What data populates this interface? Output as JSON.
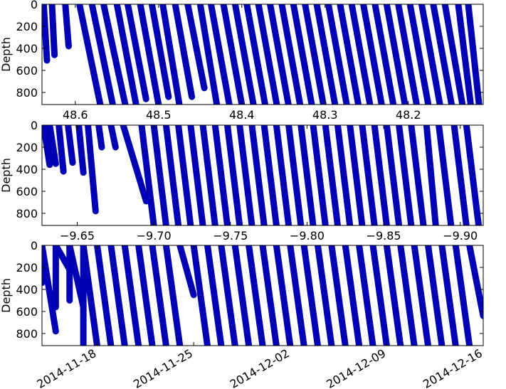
{
  "chart_data": [
    {
      "type": "scatter",
      "ylabel": "Depth",
      "xlabel": "",
      "x_reversed": true,
      "xlim": [
        48.64,
        48.11
      ],
      "ylim": [
        910,
        0
      ],
      "xticks": [
        48.6,
        48.5,
        48.4,
        48.3,
        48.2
      ],
      "xtick_labels": [
        "48.6",
        "48.5",
        "48.4",
        "48.3",
        "48.2"
      ],
      "yticks": [
        0,
        200,
        400,
        600,
        800
      ],
      "ytick_labels": [
        "0",
        "200",
        "400",
        "600",
        "800"
      ],
      "grid": false,
      "marker_color": "#0000b4",
      "series": [
        {
          "profiles": [
            {
              "x0": 48.638,
              "x1": 48.634,
              "max_depth": 510
            },
            {
              "x0": 48.628,
              "x1": 48.625,
              "max_depth": 460
            },
            {
              "x0": 48.612,
              "x1": 48.608,
              "max_depth": 380
            },
            {
              "x0": 48.595,
              "x1": 48.57,
              "max_depth": 910
            },
            {
              "x0": 48.58,
              "x1": 48.555,
              "max_depth": 910
            },
            {
              "x0": 48.566,
              "x1": 48.54,
              "max_depth": 910
            },
            {
              "x0": 48.55,
              "x1": 48.527,
              "max_depth": 910
            },
            {
              "x0": 48.537,
              "x1": 48.515,
              "max_depth": 860
            },
            {
              "x0": 48.522,
              "x1": 48.5,
              "max_depth": 910
            },
            {
              "x0": 48.508,
              "x1": 48.488,
              "max_depth": 840
            },
            {
              "x0": 48.495,
              "x1": 48.475,
              "max_depth": 910
            },
            {
              "x0": 48.48,
              "x1": 48.46,
              "max_depth": 840
            },
            {
              "x0": 48.465,
              "x1": 48.445,
              "max_depth": 760
            },
            {
              "x0": 48.45,
              "x1": 48.43,
              "max_depth": 910
            },
            {
              "x0": 48.437,
              "x1": 48.415,
              "max_depth": 910
            },
            {
              "x0": 48.422,
              "x1": 48.4,
              "max_depth": 910
            },
            {
              "x0": 48.408,
              "x1": 48.386,
              "max_depth": 910
            },
            {
              "x0": 48.394,
              "x1": 48.372,
              "max_depth": 910
            },
            {
              "x0": 48.38,
              "x1": 48.358,
              "max_depth": 910
            },
            {
              "x0": 48.366,
              "x1": 48.344,
              "max_depth": 910
            },
            {
              "x0": 48.352,
              "x1": 48.33,
              "max_depth": 910
            },
            {
              "x0": 48.338,
              "x1": 48.316,
              "max_depth": 910
            },
            {
              "x0": 48.324,
              "x1": 48.302,
              "max_depth": 910
            },
            {
              "x0": 48.31,
              "x1": 48.288,
              "max_depth": 910
            },
            {
              "x0": 48.296,
              "x1": 48.274,
              "max_depth": 910
            },
            {
              "x0": 48.282,
              "x1": 48.26,
              "max_depth": 910
            },
            {
              "x0": 48.268,
              "x1": 48.246,
              "max_depth": 910
            },
            {
              "x0": 48.254,
              "x1": 48.232,
              "max_depth": 910
            },
            {
              "x0": 48.24,
              "x1": 48.218,
              "max_depth": 910
            },
            {
              "x0": 48.226,
              "x1": 48.204,
              "max_depth": 910
            },
            {
              "x0": 48.212,
              "x1": 48.19,
              "max_depth": 910
            },
            {
              "x0": 48.198,
              "x1": 48.176,
              "max_depth": 910
            },
            {
              "x0": 48.184,
              "x1": 48.162,
              "max_depth": 910
            },
            {
              "x0": 48.17,
              "x1": 48.148,
              "max_depth": 910
            },
            {
              "x0": 48.156,
              "x1": 48.135,
              "max_depth": 910
            },
            {
              "x0": 48.14,
              "x1": 48.125,
              "max_depth": 910
            },
            {
              "x0": 48.128,
              "x1": 48.115,
              "max_depth": 910
            }
          ]
        }
      ]
    },
    {
      "type": "scatter",
      "ylabel": "Depth",
      "xlabel": "",
      "x_reversed": true,
      "xlim": [
        -9.627,
        -9.915
      ],
      "ylim": [
        910,
        0
      ],
      "xticks": [
        -9.65,
        -9.7,
        -9.75,
        -9.8,
        -9.85,
        -9.9
      ],
      "xtick_labels": [
        "−9.65",
        "−9.70",
        "−9.75",
        "−9.80",
        "−9.85",
        "−9.90"
      ],
      "yticks": [
        0,
        200,
        400,
        600,
        800
      ],
      "ytick_labels": [
        "0",
        "200",
        "400",
        "600",
        "800"
      ],
      "grid": false,
      "marker_color": "#0000b4",
      "series": [
        {
          "profiles": [
            {
              "x0": -9.628,
              "x1": -9.632,
              "max_depth": 360
            },
            {
              "x0": -9.632,
              "x1": -9.636,
              "max_depth": 350
            },
            {
              "x0": -9.638,
              "x1": -9.641,
              "max_depth": 420
            },
            {
              "x0": -9.644,
              "x1": -9.647,
              "max_depth": 340
            },
            {
              "x0": -9.651,
              "x1": -9.654,
              "max_depth": 430
            },
            {
              "x0": -9.657,
              "x1": -9.662,
              "max_depth": 780
            },
            {
              "x0": -9.664,
              "x1": -9.666,
              "max_depth": 200
            },
            {
              "x0": -9.672,
              "x1": -9.675,
              "max_depth": 200
            },
            {
              "x0": -9.68,
              "x1": -9.695,
              "max_depth": 690
            },
            {
              "x0": -9.692,
              "x1": -9.7,
              "max_depth": 910
            },
            {
              "x0": -9.7,
              "x1": -9.708,
              "max_depth": 910
            },
            {
              "x0": -9.708,
              "x1": -9.716,
              "max_depth": 910
            },
            {
              "x0": -9.716,
              "x1": -9.724,
              "max_depth": 910
            },
            {
              "x0": -9.724,
              "x1": -9.732,
              "max_depth": 910
            },
            {
              "x0": -9.732,
              "x1": -9.74,
              "max_depth": 910
            },
            {
              "x0": -9.74,
              "x1": -9.748,
              "max_depth": 910
            },
            {
              "x0": -9.748,
              "x1": -9.756,
              "max_depth": 910
            },
            {
              "x0": -9.756,
              "x1": -9.764,
              "max_depth": 910
            },
            {
              "x0": -9.764,
              "x1": -9.772,
              "max_depth": 910
            },
            {
              "x0": -9.772,
              "x1": -9.78,
              "max_depth": 910
            },
            {
              "x0": -9.78,
              "x1": -9.788,
              "max_depth": 910
            },
            {
              "x0": -9.788,
              "x1": -9.796,
              "max_depth": 910
            },
            {
              "x0": -9.796,
              "x1": -9.804,
              "max_depth": 910
            },
            {
              "x0": -9.804,
              "x1": -9.812,
              "max_depth": 910
            },
            {
              "x0": -9.812,
              "x1": -9.82,
              "max_depth": 910
            },
            {
              "x0": -9.82,
              "x1": -9.828,
              "max_depth": 910
            },
            {
              "x0": -9.828,
              "x1": -9.836,
              "max_depth": 910
            },
            {
              "x0": -9.836,
              "x1": -9.844,
              "max_depth": 910
            },
            {
              "x0": -9.844,
              "x1": -9.852,
              "max_depth": 910
            },
            {
              "x0": -9.852,
              "x1": -9.86,
              "max_depth": 910
            },
            {
              "x0": -9.86,
              "x1": -9.868,
              "max_depth": 910
            },
            {
              "x0": -9.868,
              "x1": -9.876,
              "max_depth": 910
            },
            {
              "x0": -9.878,
              "x1": -9.884,
              "max_depth": 910
            },
            {
              "x0": -9.886,
              "x1": -9.894,
              "max_depth": 910
            },
            {
              "x0": -9.896,
              "x1": -9.904,
              "max_depth": 910
            },
            {
              "x0": -9.904,
              "x1": -9.912,
              "max_depth": 910
            }
          ]
        }
      ]
    },
    {
      "type": "scatter",
      "ylabel": "Depth",
      "xlabel": "",
      "x_is_date": true,
      "xlim": [
        "2014-11-14",
        "2014-12-16"
      ],
      "ylim": [
        910,
        0
      ],
      "xticks": [
        "2014-11-18",
        "2014-11-25",
        "2014-12-02",
        "2014-12-09",
        "2014-12-16"
      ],
      "xtick_labels": [
        "2014-11-18",
        "2014-11-25",
        "2014-12-02",
        "2014-12-09",
        "2014-12-16"
      ],
      "yticks": [
        0,
        200,
        400,
        600,
        800
      ],
      "ytick_labels": [
        "0",
        "200",
        "400",
        "600",
        "800"
      ],
      "grid": false,
      "marker_color": "#0000b4",
      "series": [
        {
          "profiles": [
            {
              "x0": "2014-11-14",
              "x1": "2014-11-14",
              "max_depth": 340
            },
            {
              "x0": "2014-11-14",
              "x1": "2014-11-15",
              "max_depth": 780
            },
            {
              "x0": "2014-11-15",
              "x1": "2014-11-15",
              "max_depth": 560
            },
            {
              "x0": "2014-11-15",
              "x1": "2014-11-16",
              "max_depth": 220
            },
            {
              "x0": "2014-11-16",
              "x1": "2014-11-16",
              "max_depth": 500
            },
            {
              "x0": "2014-11-16",
              "x1": "2014-11-17",
              "max_depth": 560
            },
            {
              "x0": "2014-11-17",
              "x1": "2014-11-17",
              "max_depth": 910
            },
            {
              "x0": "2014-11-17",
              "x1": "2014-11-18",
              "max_depth": 910
            },
            {
              "x0": "2014-11-18",
              "x1": "2014-11-19",
              "max_depth": 910
            },
            {
              "x0": "2014-11-19",
              "x1": "2014-11-20",
              "max_depth": 910
            },
            {
              "x0": "2014-11-20",
              "x1": "2014-11-21",
              "max_depth": 910
            },
            {
              "x0": "2014-11-21",
              "x1": "2014-11-22",
              "max_depth": 910
            },
            {
              "x0": "2014-11-22",
              "x1": "2014-11-23",
              "max_depth": 910
            },
            {
              "x0": "2014-11-23",
              "x1": "2014-11-24",
              "max_depth": 910
            },
            {
              "x0": "2014-11-24",
              "x1": "2014-11-25",
              "max_depth": 450
            },
            {
              "x0": "2014-11-25",
              "x1": "2014-11-26",
              "max_depth": 910
            },
            {
              "x0": "2014-11-26",
              "x1": "2014-11-27",
              "max_depth": 910
            },
            {
              "x0": "2014-11-27",
              "x1": "2014-11-28",
              "max_depth": 910
            },
            {
              "x0": "2014-11-28",
              "x1": "2014-11-29",
              "max_depth": 910
            },
            {
              "x0": "2014-11-29",
              "x1": "2014-11-30",
              "max_depth": 910
            },
            {
              "x0": "2014-11-30",
              "x1": "2014-12-01",
              "max_depth": 910
            },
            {
              "x0": "2014-12-01",
              "x1": "2014-12-02",
              "max_depth": 910
            },
            {
              "x0": "2014-12-02",
              "x1": "2014-12-03",
              "max_depth": 910
            },
            {
              "x0": "2014-12-03",
              "x1": "2014-12-04",
              "max_depth": 910
            },
            {
              "x0": "2014-12-04",
              "x1": "2014-12-05",
              "max_depth": 910
            },
            {
              "x0": "2014-12-05",
              "x1": "2014-12-06",
              "max_depth": 910
            },
            {
              "x0": "2014-12-06",
              "x1": "2014-12-07",
              "max_depth": 910
            },
            {
              "x0": "2014-12-07",
              "x1": "2014-12-08",
              "max_depth": 910
            },
            {
              "x0": "2014-12-08",
              "x1": "2014-12-09",
              "max_depth": 910
            },
            {
              "x0": "2014-12-09",
              "x1": "2014-12-10",
              "max_depth": 910
            },
            {
              "x0": "2014-12-10",
              "x1": "2014-12-11",
              "max_depth": 910
            },
            {
              "x0": "2014-12-11",
              "x1": "2014-12-12",
              "max_depth": 910
            },
            {
              "x0": "2014-12-12",
              "x1": "2014-12-13",
              "max_depth": 910
            },
            {
              "x0": "2014-12-13",
              "x1": "2014-12-14",
              "max_depth": 910
            },
            {
              "x0": "2014-12-14",
              "x1": "2014-12-15",
              "max_depth": 910
            },
            {
              "x0": "2014-12-15",
              "x1": "2014-12-16",
              "max_depth": 640
            }
          ]
        }
      ]
    }
  ]
}
